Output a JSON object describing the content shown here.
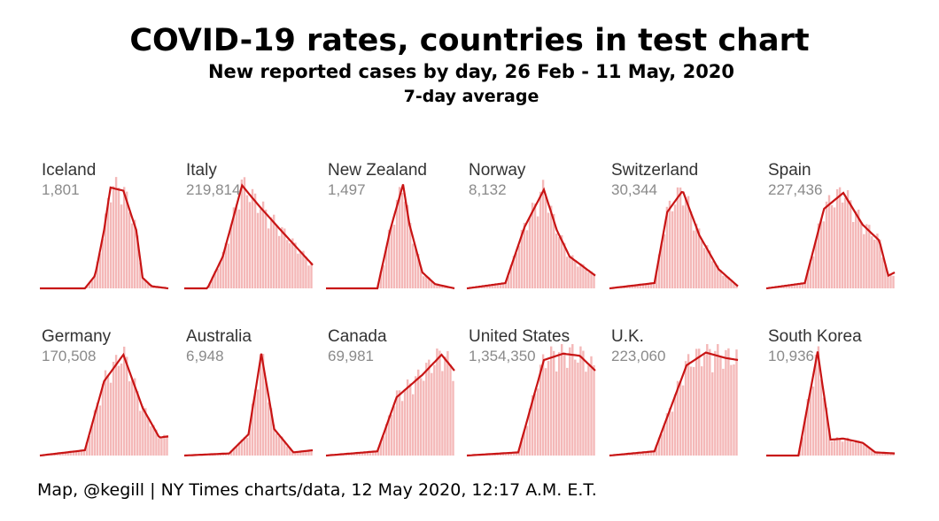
{
  "title": "COVID-19 rates, countries in test chart",
  "subtitle": "New reported cases by day, 26 Feb - 11 May, 2020",
  "average_note": "7-day average",
  "footer": "Map, @kegill | NY Times charts/data, 12 May 2020, 12:17 A.M. E.T.",
  "colors": {
    "line": "#c81414",
    "bars": "#f4b8b8",
    "country_label": "#333333",
    "total_label": "#8a8a8a"
  },
  "chart_data": {
    "type": "area",
    "layout": "small-multiples",
    "x_range": [
      "2020-02-26",
      "2020-05-11"
    ],
    "y_scale": "independent per panel",
    "grid": false,
    "legend": "none",
    "series": [
      {
        "name": "Iceland",
        "total": "1,801",
        "x_norm": [
          0,
          0.35,
          0.43,
          0.5,
          0.55,
          0.65,
          0.75,
          0.8,
          0.87,
          1
        ],
        "y_norm": [
          0,
          0,
          0.12,
          0.55,
          0.95,
          0.92,
          0.55,
          0.1,
          0.02,
          0
        ]
      },
      {
        "name": "Italy",
        "total": "219,814",
        "x_norm": [
          0,
          0.18,
          0.3,
          0.45,
          0.58,
          0.75,
          1
        ],
        "y_norm": [
          0,
          0,
          0.3,
          0.97,
          0.78,
          0.55,
          0.22
        ]
      },
      {
        "name": "New Zealand",
        "total": "1,497",
        "x_norm": [
          0,
          0.4,
          0.5,
          0.6,
          0.65,
          0.75,
          0.85,
          1
        ],
        "y_norm": [
          0,
          0,
          0.55,
          0.98,
          0.6,
          0.15,
          0.04,
          0
        ]
      },
      {
        "name": "Norway",
        "total": "8,132",
        "x_norm": [
          0,
          0.3,
          0.45,
          0.6,
          0.7,
          0.8,
          1
        ],
        "y_norm": [
          0,
          0.05,
          0.58,
          0.93,
          0.55,
          0.3,
          0.12
        ]
      },
      {
        "name": "Switzerland",
        "total": "30,344",
        "x_norm": [
          0,
          0.35,
          0.45,
          0.57,
          0.7,
          0.85,
          1
        ],
        "y_norm": [
          0,
          0.05,
          0.72,
          0.92,
          0.5,
          0.18,
          0.02
        ]
      },
      {
        "name": "Spain",
        "total": "227,436",
        "x_norm": [
          0,
          0.3,
          0.45,
          0.6,
          0.75,
          0.88,
          0.95,
          1
        ],
        "y_norm": [
          0,
          0.05,
          0.75,
          0.9,
          0.6,
          0.45,
          0.12,
          0.15
        ]
      },
      {
        "name": "Germany",
        "total": "170,508",
        "x_norm": [
          0,
          0.35,
          0.5,
          0.65,
          0.8,
          0.93,
          1
        ],
        "y_norm": [
          0,
          0.05,
          0.7,
          0.95,
          0.45,
          0.17,
          0.18
        ]
      },
      {
        "name": "Australia",
        "total": "6,948",
        "x_norm": [
          0,
          0.35,
          0.5,
          0.6,
          0.7,
          0.85,
          1
        ],
        "y_norm": [
          0,
          0.02,
          0.2,
          0.96,
          0.25,
          0.03,
          0.05
        ]
      },
      {
        "name": "Canada",
        "total": "69,981",
        "x_norm": [
          0,
          0.4,
          0.55,
          0.75,
          0.9,
          1
        ],
        "y_norm": [
          0,
          0.04,
          0.55,
          0.76,
          0.95,
          0.8
        ]
      },
      {
        "name": "United States",
        "total": "1,354,350",
        "x_norm": [
          0,
          0.4,
          0.6,
          0.75,
          0.88,
          1
        ],
        "y_norm": [
          0,
          0.03,
          0.9,
          0.96,
          0.94,
          0.8
        ]
      },
      {
        "name": "U.K.",
        "total": "223,060",
        "x_norm": [
          0,
          0.35,
          0.6,
          0.75,
          0.9,
          1
        ],
        "y_norm": [
          0,
          0.04,
          0.85,
          0.97,
          0.92,
          0.9
        ]
      },
      {
        "name": "South Korea",
        "total": "10,936",
        "x_norm": [
          0,
          0.25,
          0.4,
          0.5,
          0.6,
          0.75,
          0.85,
          1
        ],
        "y_norm": [
          0,
          0,
          0.98,
          0.15,
          0.16,
          0.12,
          0.03,
          0.02
        ]
      }
    ]
  }
}
